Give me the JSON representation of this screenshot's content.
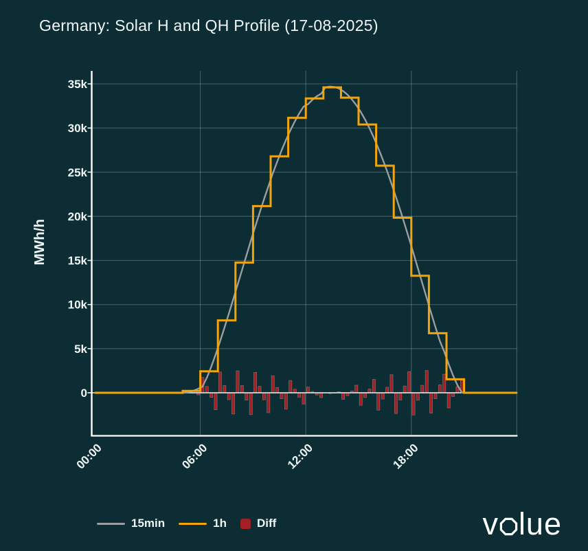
{
  "title": "Germany: Solar H and QH Profile (17-08-2025)",
  "logo": {
    "text": "volue"
  },
  "colors": {
    "background": "#0C2D33",
    "text": "#F0F5F5",
    "axis": "#FFFFFF",
    "grid": "rgba(210,232,232,0.25)",
    "zero_line": "#EDF2F2",
    "line_15min": "#9B9EA0",
    "line_1h": "#F3A40A",
    "diff_bar": "#A02025",
    "diff_bar_edge": "rgba(170,180,180,0.55)"
  },
  "legend": {
    "items": [
      {
        "label": "15min",
        "swatch": "line",
        "color": "#9B9EA0"
      },
      {
        "label": "1h",
        "swatch": "line",
        "color": "#F3A40A"
      },
      {
        "label": "Diff",
        "swatch": "square",
        "color": "#A02025"
      }
    ]
  },
  "chart_data": {
    "type": "line+bar",
    "title": "Germany: Solar H and QH Profile (17-08-2025)",
    "ylabel": "MWh/h",
    "x_axis": {
      "range_hours": [
        0,
        24
      ],
      "tick_hours": [
        0,
        6,
        12,
        18
      ],
      "tick_labels": [
        "00:00",
        "06:00",
        "12:00",
        "18:00"
      ],
      "gridline_hours": [
        6,
        12,
        18,
        24
      ]
    },
    "y_axis": {
      "range": [
        -4800,
        36500
      ],
      "ticks": [
        0,
        5000,
        10000,
        15000,
        20000,
        25000,
        30000,
        35000
      ],
      "tick_labels": [
        "0",
        "5k",
        "10k",
        "15k",
        "20k",
        "25k",
        "30k",
        "35k"
      ],
      "label": "MWh/h"
    },
    "series": [
      {
        "name": "15min",
        "type": "line",
        "color": "#9B9EA0",
        "interval_minutes": 15,
        "values": [
          0,
          0,
          0,
          0,
          0,
          0,
          0,
          0,
          0,
          0,
          0,
          0,
          0,
          0,
          0,
          0,
          0,
          0,
          0,
          0,
          30,
          100,
          250,
          450,
          700,
          1720,
          2970,
          4360,
          5840,
          7380,
          8980,
          10610,
          12260,
          13930,
          15580,
          17230,
          18840,
          20410,
          21940,
          23410,
          24870,
          26200,
          27480,
          28660,
          29750,
          30750,
          31650,
          32430,
          32700,
          33200,
          33600,
          33900,
          34620,
          34700,
          34650,
          34480,
          34180,
          33770,
          33230,
          32580,
          31820,
          30940,
          29960,
          28880,
          27700,
          26440,
          25100,
          23680,
          22190,
          20660,
          19070,
          17440,
          15780,
          14100,
          12410,
          10730,
          9060,
          7430,
          5850,
          4650,
          3250,
          1960,
          850,
          40,
          0,
          0,
          0,
          0,
          0,
          0,
          0,
          0,
          0,
          0,
          0,
          0
        ]
      },
      {
        "name": "1h",
        "type": "step-line",
        "color": "#F3A40A",
        "interval_minutes": 60,
        "values": [
          0,
          0,
          0,
          0,
          0,
          210,
          2440,
          8200,
          14750,
          21150,
          26800,
          31150,
          33350,
          34610,
          33440,
          30400,
          25730,
          19840,
          13260,
          6750,
          1530,
          0,
          0,
          0
        ]
      },
      {
        "name": "Diff",
        "type": "bar",
        "color": "#A02025",
        "interval_minutes": 15,
        "values": [
          0,
          0,
          0,
          0,
          0,
          0,
          0,
          0,
          0,
          0,
          0,
          0,
          0,
          0,
          0,
          0,
          0,
          0,
          0,
          0,
          180,
          110,
          -40,
          -240,
          1740,
          720,
          -530,
          -1920,
          2360,
          820,
          -780,
          -2410,
          2490,
          820,
          -830,
          -2480,
          2310,
          740,
          -790,
          -2260,
          1930,
          600,
          -680,
          -1860,
          1400,
          400,
          -500,
          -1280,
          650,
          150,
          -250,
          -550,
          -10,
          -90,
          -40,
          130,
          -740,
          -330,
          210,
          860,
          -1420,
          -540,
          440,
          1520,
          -1970,
          -710,
          630,
          2050,
          -2350,
          -820,
          770,
          2400,
          -2520,
          -840,
          850,
          2530,
          -2310,
          -680,
          900,
          2100,
          -1720,
          -430,
          680,
          1490,
          0,
          0,
          0,
          0,
          0,
          0,
          0,
          0,
          0,
          0,
          0,
          0
        ]
      }
    ]
  }
}
